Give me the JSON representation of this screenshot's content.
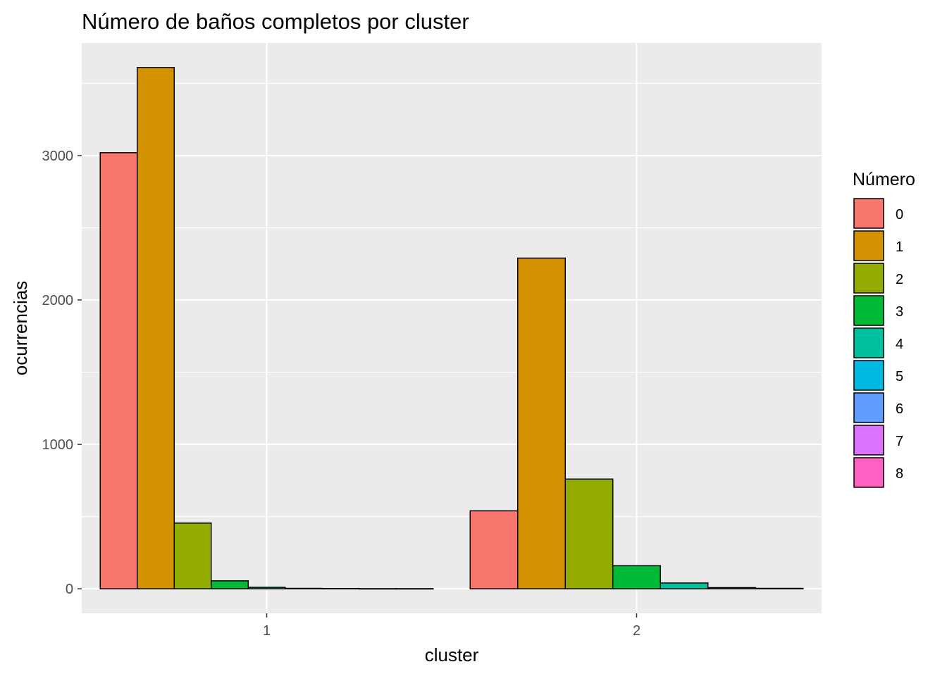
{
  "chart_data": {
    "type": "bar",
    "title": "Número de baños completos por cluster",
    "xlabel": "cluster",
    "ylabel": "ocurrencias",
    "categories": [
      "1",
      "2"
    ],
    "ylim": [
      -170,
      3780
    ],
    "yticks": [
      0,
      1000,
      2000,
      3000
    ],
    "yticklabels": [
      "0",
      "1000",
      "2000",
      "3000"
    ],
    "grid": true,
    "legend": {
      "title": "Número",
      "position": "right"
    },
    "series": [
      {
        "name": "0",
        "color": "#F8766D",
        "values": [
          3020,
          540
        ]
      },
      {
        "name": "1",
        "color": "#D39200",
        "values": [
          3610,
          2290
        ]
      },
      {
        "name": "2",
        "color": "#93AA00",
        "values": [
          455,
          760
        ]
      },
      {
        "name": "3",
        "color": "#00BA38",
        "values": [
          55,
          160
        ]
      },
      {
        "name": "4",
        "color": "#00C19F",
        "values": [
          10,
          40
        ]
      },
      {
        "name": "5",
        "color": "#00B9E3",
        "values": [
          3,
          8
        ]
      },
      {
        "name": "6",
        "color": "#619CFF",
        "values": [
          2,
          3
        ]
      },
      {
        "name": "7",
        "color": "#DB72FB",
        "values": [
          1,
          null
        ]
      },
      {
        "name": "8",
        "color": "#FF61C3",
        "values": [
          1,
          null
        ]
      }
    ]
  }
}
